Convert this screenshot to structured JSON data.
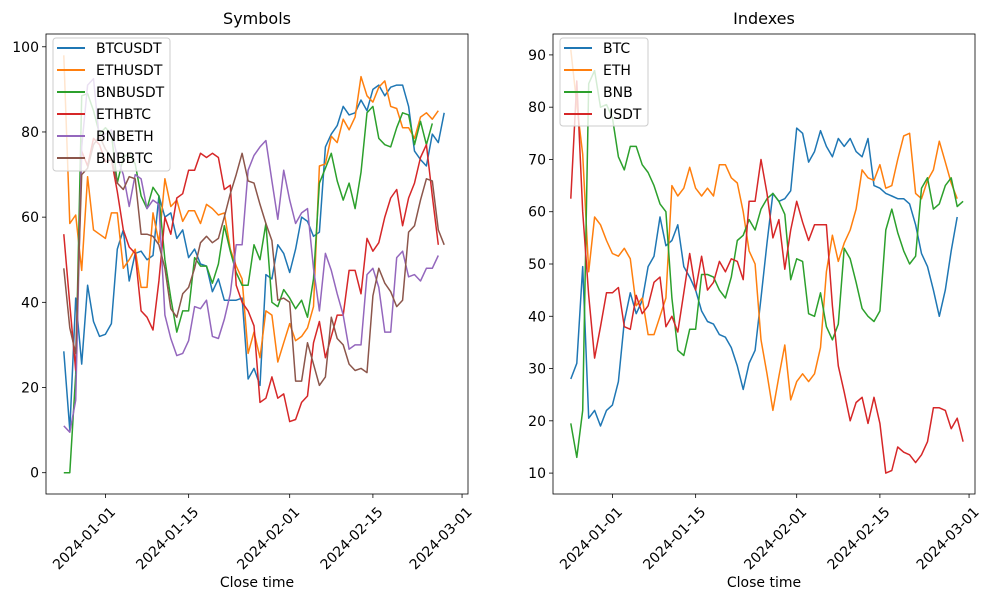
{
  "chart_data": [
    {
      "type": "line",
      "title": "Symbols",
      "xlabel": "Close time",
      "ylabel": "",
      "x_start": "2023-12-25",
      "x_step_days": 1,
      "xlim": [
        "2023-12-22",
        "2024-03-02"
      ],
      "ylim": [
        -5,
        103
      ],
      "xticks": [
        "2024-01-01",
        "2024-01-15",
        "2024-02-01",
        "2024-02-15",
        "2024-03-01"
      ],
      "yticks": [
        0,
        20,
        40,
        60,
        80,
        100
      ],
      "grid": false,
      "legend": "top-left",
      "series": [
        {
          "name": "BTCUSDT",
          "color": "#1f77b4",
          "values": [
            28.5,
            10.0,
            41.0,
            25.5,
            44.0,
            35.5,
            32.0,
            32.5,
            35.0,
            52.5,
            57.0,
            45.0,
            51.5,
            52.0,
            50.0,
            51.0,
            65.0,
            60.0,
            61.0,
            55.0,
            57.0,
            50.5,
            52.5,
            49.0,
            48.5,
            42.5,
            45.5,
            40.5,
            40.5,
            40.5,
            41.0,
            22.0,
            24.5,
            20.5,
            46.5,
            45.5,
            53.5,
            51.5,
            47.0,
            52.5,
            60.0,
            59.0,
            55.5,
            56.5,
            76.5,
            79.5,
            81.5,
            86.0,
            84.0,
            84.5,
            87.5,
            85.0,
            90.0,
            91.0,
            88.5,
            90.5,
            91.0,
            91.0,
            86.0,
            75.5,
            73.5,
            72.0,
            79.5,
            77.5,
            84.5
          ]
        },
        {
          "name": "ETHUSDT",
          "color": "#ff7f0e",
          "values": [
            98.0,
            58.5,
            60.5,
            47.5,
            69.5,
            57.0,
            56.0,
            55.0,
            61.0,
            61.0,
            48.0,
            50.0,
            52.5,
            43.5,
            43.5,
            61.0,
            54.0,
            69.0,
            62.5,
            64.0,
            59.0,
            61.5,
            61.5,
            58.5,
            63.0,
            62.0,
            60.5,
            61.0,
            52.5,
            48.5,
            45.5,
            28.0,
            33.0,
            27.0,
            38.0,
            37.0,
            26.0,
            30.5,
            35.0,
            31.0,
            32.0,
            34.0,
            39.0,
            72.0,
            72.5,
            79.0,
            77.5,
            83.0,
            80.5,
            83.5,
            93.0,
            88.5,
            87.0,
            90.5,
            92.0,
            86.0,
            85.5,
            81.0,
            81.0,
            78.5,
            83.5,
            84.5,
            83.0,
            85.0
          ]
        },
        {
          "name": "BNBUSDT",
          "color": "#2ca02c",
          "values": [
            0.0,
            0.0,
            23.0,
            88.5,
            89.0,
            85.0,
            79.5,
            81.0,
            79.5,
            68.0,
            74.0,
            75.0,
            72.5,
            65.0,
            62.0,
            67.0,
            65.0,
            50.0,
            41.0,
            33.0,
            38.0,
            38.0,
            50.5,
            48.5,
            48.5,
            44.5,
            49.0,
            58.0,
            52.0,
            47.0,
            44.0,
            44.0,
            53.5,
            50.0,
            58.5,
            40.0,
            39.0,
            43.0,
            41.0,
            38.5,
            40.5,
            36.5,
            45.5,
            68.0,
            71.5,
            75.0,
            68.5,
            64.0,
            68.0,
            62.0,
            70.5,
            84.5,
            86.0,
            78.5,
            77.0,
            76.5,
            81.0,
            84.5,
            84.0,
            77.0,
            82.5,
            77.0,
            82.0
          ]
        },
        {
          "name": "ETHBTC",
          "color": "#d62728",
          "values": [
            56.0,
            39.5,
            24.0,
            75.5,
            72.0,
            78.5,
            77.0,
            73.0,
            73.5,
            66.0,
            57.0,
            53.0,
            51.5,
            38.0,
            36.5,
            33.5,
            45.0,
            60.0,
            56.0,
            64.5,
            65.5,
            71.0,
            71.0,
            75.0,
            74.0,
            75.0,
            74.0,
            66.5,
            67.5,
            44.0,
            40.0,
            38.0,
            34.5,
            16.5,
            17.5,
            22.5,
            17.5,
            18.5,
            12.0,
            12.5,
            16.5,
            18.0,
            30.5,
            35.5,
            27.0,
            32.0,
            37.0,
            37.0,
            47.5,
            47.5,
            42.0,
            55.0,
            52.0,
            54.0,
            60.0,
            64.5,
            66.5,
            58.0,
            64.5,
            68.0,
            74.0,
            77.0,
            65.0,
            53.5
          ]
        },
        {
          "name": "BNBETH",
          "color": "#9467bd",
          "values": [
            11.0,
            9.5,
            17.0,
            76.5,
            91.0,
            92.5,
            78.0,
            79.5,
            80.5,
            74.0,
            70.0,
            62.5,
            70.0,
            69.0,
            62.0,
            64.0,
            63.0,
            37.0,
            31.5,
            27.5,
            28.0,
            31.0,
            39.0,
            38.5,
            40.5,
            32.0,
            31.5,
            36.0,
            42.0,
            53.5,
            53.5,
            71.0,
            74.5,
            76.5,
            78.0,
            68.5,
            59.5,
            71.0,
            64.0,
            58.5,
            61.0,
            62.0,
            48.0,
            38.0,
            51.5,
            47.5,
            42.0,
            37.0,
            29.0,
            30.0,
            30.0,
            46.5,
            48.0,
            43.5,
            33.0,
            33.0,
            50.5,
            52.0,
            46.0,
            46.5,
            45.0,
            48.0,
            48.0,
            51.0
          ]
        },
        {
          "name": "BNBBTC",
          "color": "#8c564b",
          "values": [
            48.0,
            34.0,
            28.0,
            70.0,
            71.5,
            77.0,
            79.0,
            76.0,
            74.0,
            68.0,
            66.5,
            69.5,
            69.0,
            56.0,
            56.0,
            55.5,
            53.5,
            48.0,
            38.5,
            36.5,
            42.0,
            43.5,
            48.0,
            54.0,
            55.5,
            54.0,
            55.0,
            60.0,
            65.5,
            70.0,
            75.0,
            68.5,
            68.0,
            63.0,
            58.5,
            54.5,
            40.5,
            41.0,
            40.0,
            21.5,
            21.5,
            30.5,
            25.5,
            20.5,
            22.5,
            36.5,
            31.5,
            30.0,
            25.5,
            24.0,
            24.5,
            23.5,
            41.5,
            48.0,
            44.5,
            42.5,
            39.0,
            40.5,
            56.5,
            58.0,
            64.0,
            69.0,
            68.5,
            57.0,
            53.5
          ]
        }
      ]
    },
    {
      "type": "line",
      "title": "Indexes",
      "xlabel": "Close time",
      "ylabel": "",
      "x_start": "2023-12-25",
      "x_step_days": 1,
      "xlim": [
        "2023-12-22",
        "2024-03-02"
      ],
      "ylim": [
        6,
        94
      ],
      "xticks": [
        "2024-01-01",
        "2024-01-15",
        "2024-02-01",
        "2024-02-15",
        "2024-03-01"
      ],
      "yticks": [
        10,
        20,
        30,
        40,
        50,
        60,
        70,
        80,
        90
      ],
      "grid": false,
      "legend": "top-left",
      "series": [
        {
          "name": "BTC",
          "color": "#1f77b4",
          "values": [
            28.0,
            31.0,
            49.5,
            20.5,
            22.0,
            19.0,
            22.0,
            23.0,
            27.5,
            39.0,
            44.5,
            40.5,
            43.0,
            49.5,
            51.5,
            59.0,
            53.5,
            54.5,
            57.5,
            49.5,
            47.5,
            45.0,
            41.0,
            39.0,
            38.5,
            36.5,
            36.0,
            34.0,
            30.5,
            26.0,
            31.0,
            33.5,
            43.5,
            54.0,
            63.5,
            62.0,
            62.5,
            64.0,
            76.0,
            75.0,
            69.5,
            71.5,
            75.5,
            72.5,
            70.5,
            74.0,
            72.5,
            74.0,
            71.5,
            70.5,
            74.0,
            65.0,
            64.5,
            63.5,
            63.0,
            62.5,
            62.5,
            61.5,
            57.5,
            52.0,
            49.5,
            45.0,
            40.0,
            45.0,
            52.5,
            59.0
          ]
        },
        {
          "name": "ETH",
          "color": "#ff7f0e",
          "values": [
            91.0,
            80.5,
            71.0,
            48.5,
            59.0,
            57.5,
            54.5,
            52.0,
            51.5,
            53.0,
            51.0,
            42.0,
            43.5,
            36.5,
            36.5,
            40.0,
            43.5,
            65.0,
            63.0,
            64.5,
            68.5,
            64.5,
            63.0,
            64.5,
            63.0,
            69.0,
            69.0,
            66.5,
            65.5,
            60.0,
            52.5,
            50.0,
            35.5,
            29.0,
            22.0,
            28.5,
            34.5,
            24.0,
            27.5,
            29.0,
            27.5,
            29.0,
            34.0,
            48.5,
            55.5,
            50.5,
            54.0,
            56.5,
            60.5,
            68.0,
            66.5,
            66.0,
            69.0,
            64.5,
            65.0,
            70.0,
            74.5,
            75.0,
            63.5,
            62.5,
            66.0,
            68.0,
            73.5,
            69.5,
            65.5,
            62.5
          ]
        },
        {
          "name": "BNB",
          "color": "#2ca02c",
          "values": [
            19.5,
            13.0,
            22.0,
            84.5,
            87.0,
            80.0,
            80.5,
            78.0,
            70.5,
            68.0,
            72.5,
            72.5,
            69.0,
            67.5,
            65.0,
            61.5,
            60.0,
            43.5,
            33.5,
            32.5,
            37.5,
            37.5,
            48.0,
            48.0,
            47.5,
            45.0,
            43.5,
            47.5,
            54.5,
            55.5,
            58.5,
            56.5,
            60.5,
            62.5,
            63.5,
            62.0,
            59.5,
            47.0,
            51.0,
            50.5,
            40.5,
            40.0,
            44.5,
            38.0,
            35.5,
            38.5,
            53.0,
            51.0,
            46.5,
            41.5,
            40.0,
            39.0,
            41.0,
            56.5,
            60.5,
            56.0,
            52.5,
            50.0,
            51.5,
            64.5,
            66.5,
            60.5,
            61.5,
            65.0,
            66.5,
            61.0,
            62.0
          ]
        },
        {
          "name": "USDT",
          "color": "#d62728",
          "values": [
            62.5,
            85.0,
            60.0,
            44.0,
            32.0,
            38.0,
            44.5,
            44.5,
            45.5,
            38.0,
            37.5,
            44.0,
            40.5,
            42.0,
            46.5,
            47.5,
            38.0,
            40.0,
            37.0,
            44.5,
            52.0,
            45.0,
            51.5,
            45.0,
            46.5,
            50.5,
            48.5,
            51.0,
            50.5,
            47.0,
            62.0,
            62.0,
            70.0,
            63.5,
            55.0,
            58.5,
            49.0,
            56.5,
            62.0,
            58.0,
            54.5,
            57.5,
            57.5,
            57.5,
            42.0,
            30.5,
            25.5,
            20.0,
            23.5,
            24.5,
            19.5,
            24.5,
            19.5,
            10.0,
            10.5,
            15.0,
            14.0,
            13.5,
            12.0,
            13.5,
            16.0,
            22.5,
            22.5,
            22.0,
            18.5,
            20.5,
            16.0
          ]
        }
      ]
    }
  ]
}
